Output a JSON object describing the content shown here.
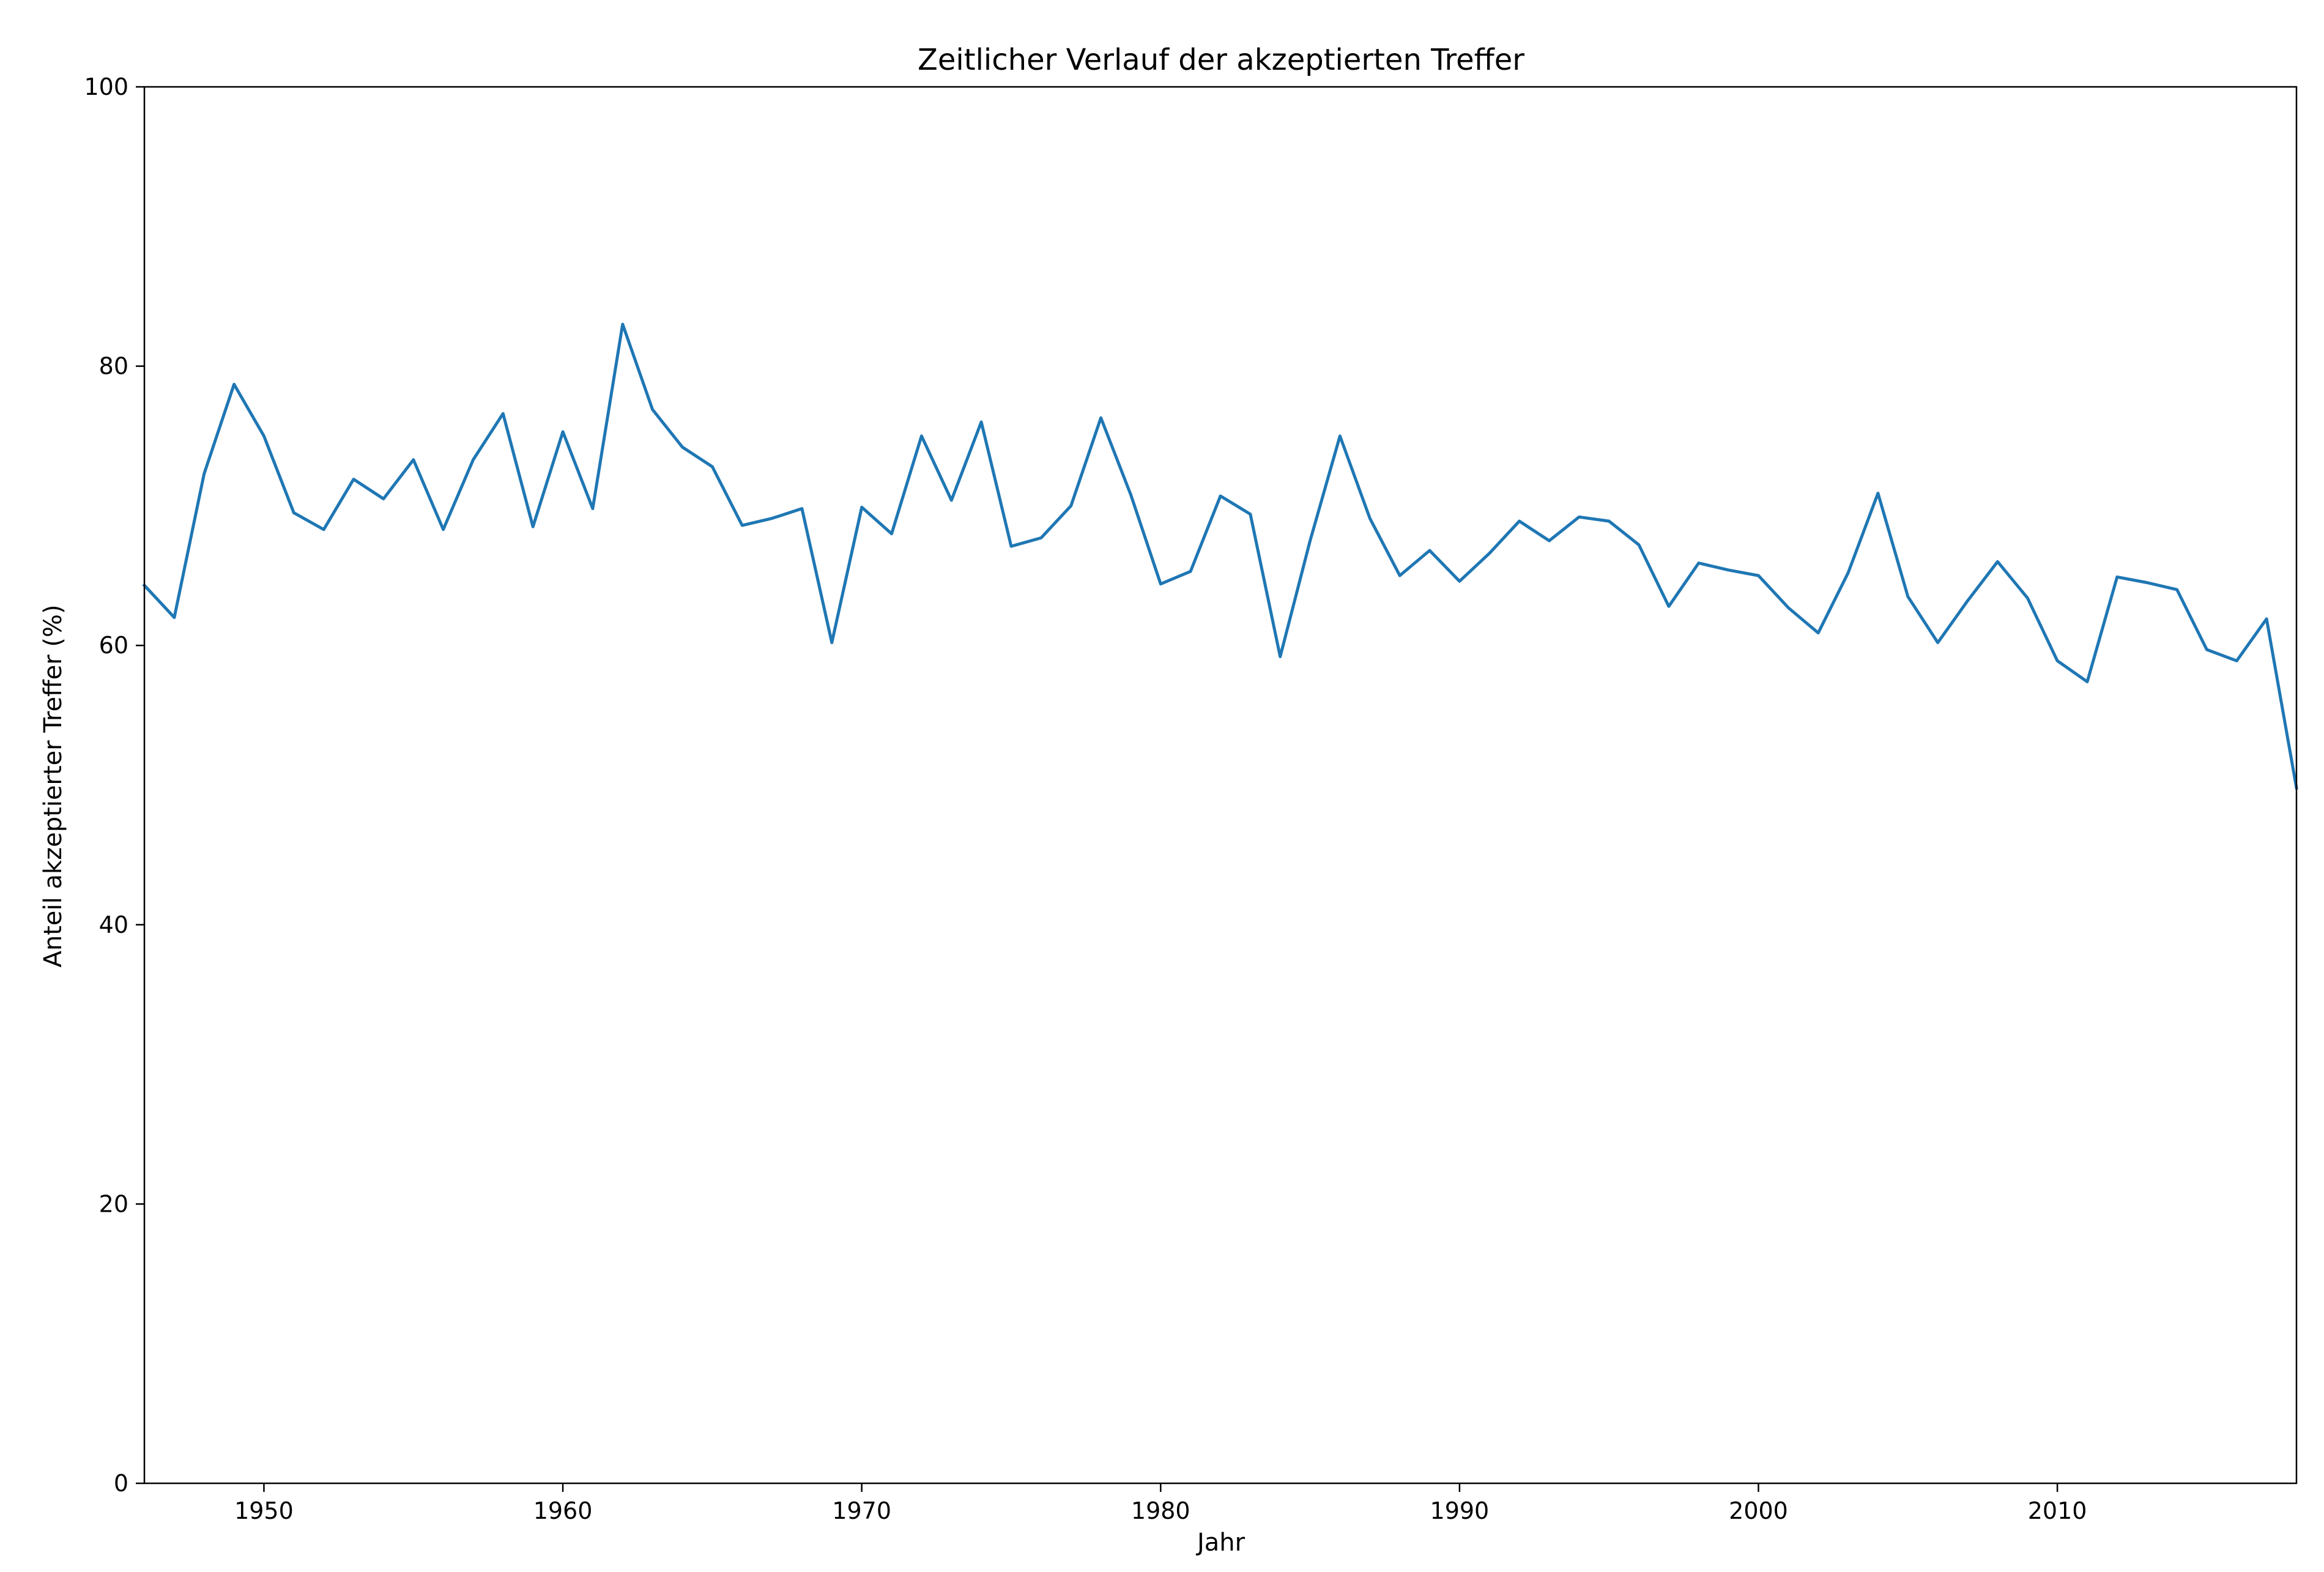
{
  "chart_data": {
    "type": "line",
    "title": "Zeitlicher Verlauf der akzeptierten Treffer",
    "xlabel": "Jahr",
    "ylabel": "Anteil akzeptierter Treffer (%)",
    "xlim": [
      1946,
      2018
    ],
    "ylim": [
      0,
      100
    ],
    "xticks": [
      1950,
      1960,
      1970,
      1980,
      1990,
      2000,
      2010
    ],
    "yticks": [
      0,
      20,
      40,
      60,
      80,
      100
    ],
    "grid": false,
    "line_color": "#1f77b4",
    "series": [
      {
        "x": [
          1946,
          1947,
          1948,
          1949,
          1950,
          1951,
          1952,
          1953,
          1954,
          1955,
          1956,
          1957,
          1958,
          1959,
          1960,
          1961,
          1962,
          1963,
          1964,
          1965,
          1966,
          1967,
          1968,
          1969,
          1970,
          1971,
          1972,
          1973,
          1974,
          1975,
          1976,
          1977,
          1978,
          1979,
          1980,
          1981,
          1982,
          1983,
          1984,
          1985,
          1986,
          1987,
          1988,
          1989,
          1990,
          1991,
          1992,
          1993,
          1994,
          1995,
          1996,
          1997,
          1998,
          1999,
          2000,
          2001,
          2002,
          2003,
          2004,
          2005,
          2006,
          2007,
          2008,
          2009,
          2010,
          2011,
          2012,
          2013,
          2014,
          2015,
          2016,
          2017,
          2018
        ],
        "y": [
          64.3,
          62.0,
          72.3,
          78.7,
          75.0,
          69.5,
          68.3,
          71.9,
          70.5,
          73.3,
          68.3,
          73.3,
          76.6,
          68.5,
          75.3,
          69.8,
          83.0,
          76.9,
          74.2,
          72.8,
          68.6,
          69.1,
          69.8,
          60.2,
          69.9,
          68.0,
          75.0,
          70.4,
          76.0,
          67.1,
          67.7,
          70.0,
          76.3,
          70.8,
          64.4,
          65.3,
          70.7,
          69.4,
          59.2,
          67.5,
          75.0,
          69.1,
          65.0,
          66.8,
          64.6,
          66.6,
          68.9,
          67.5,
          69.2,
          68.9,
          67.2,
          62.8,
          65.9,
          65.4,
          65.0,
          62.7,
          60.9,
          65.2,
          70.9,
          63.5,
          60.2,
          63.2,
          66.0,
          63.4,
          58.9,
          57.4,
          64.9,
          64.5,
          64.0,
          59.7,
          58.9,
          61.9,
          49.8
        ]
      }
    ]
  }
}
